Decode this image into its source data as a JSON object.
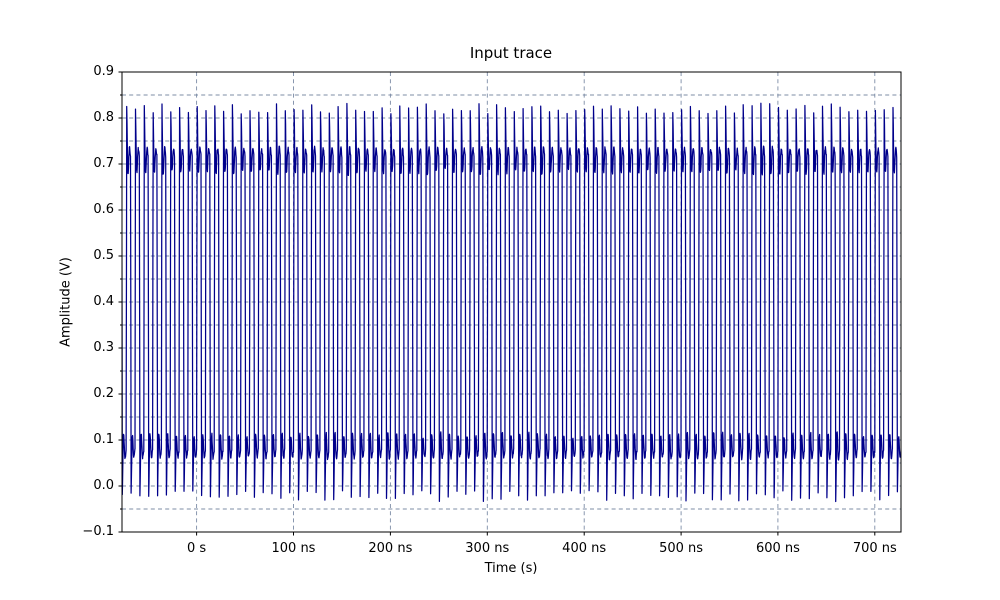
{
  "window": {
    "background": "#ffffff"
  },
  "chart_data": {
    "type": "line",
    "title": "Input trace",
    "xlabel": "Time (s)",
    "ylabel": "Amplitude (V)",
    "xlim_ns": [
      -77,
      727
    ],
    "ylim": [
      -0.1,
      0.9
    ],
    "x_ticks": [
      {
        "ns": 0,
        "label": "0 s"
      },
      {
        "ns": 100,
        "label": "100 ns"
      },
      {
        "ns": 200,
        "label": "200 ns"
      },
      {
        "ns": 300,
        "label": "300 ns"
      },
      {
        "ns": 400,
        "label": "400 ns"
      },
      {
        "ns": 500,
        "label": "500 ns"
      },
      {
        "ns": 600,
        "label": "600 ns"
      },
      {
        "ns": 700,
        "label": "700 ns"
      }
    ],
    "y_ticks": [
      {
        "v": 0.9,
        "label": "0.9"
      },
      {
        "v": 0.8,
        "label": "0.8"
      },
      {
        "v": 0.7,
        "label": "0.7"
      },
      {
        "v": 0.6,
        "label": "0.6"
      },
      {
        "v": 0.5,
        "label": "0.5"
      },
      {
        "v": 0.4,
        "label": "0.4"
      },
      {
        "v": 0.3,
        "label": "0.3"
      },
      {
        "v": 0.2,
        "label": "0.2"
      },
      {
        "v": 0.1,
        "label": "0.1"
      },
      {
        "v": 0.0,
        "label": "0.0"
      },
      {
        "v": -0.1,
        "label": "−0.1"
      }
    ],
    "grid": {
      "color": "#7c8ca6",
      "dash": "4 3.2",
      "line_width": 0.9,
      "horizontal_min": -0.05,
      "horizontal_max": 0.85,
      "horizontal_step": 0.05,
      "vertical_at_major_x_ticks": true
    },
    "axis": {
      "spine_color": "#000000",
      "tick_color": "#000000",
      "major_tick_len": 3.5,
      "minor_tick_len": 2.0,
      "y_minor_step": 0.05
    },
    "series": [
      {
        "name": "input-trace",
        "color": "#00008B",
        "line_width": 1.25,
        "waveform": {
          "shape": "square-wave-with-ringing",
          "period_ns": 9.09,
          "duty_cycle": 0.5,
          "high_settle_v": 0.72,
          "low_settle_v": 0.075,
          "overshoot_peak_v": 0.82,
          "undershoot_v": -0.022,
          "ring_period_ns": 3.0,
          "ring_decay_ns": 1.5,
          "edge_time_ns": 0.6,
          "peak_jitter_v": 0.012,
          "point_noise_v": 0.004,
          "t_start_ns": -77,
          "t_end_ns": 727
        }
      }
    ]
  }
}
